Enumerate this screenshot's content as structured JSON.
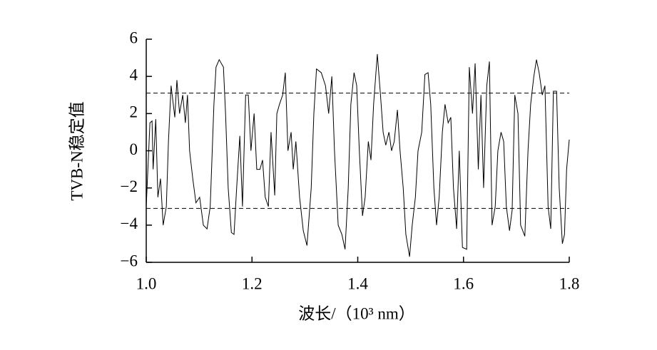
{
  "chart_data": {
    "type": "line",
    "xlabel": "波长/（10³ nm）",
    "ylabel": "TVB-N稳定值",
    "x": [
      1.0,
      1.007,
      1.011,
      1.013,
      1.018,
      1.022,
      1.027,
      1.032,
      1.038,
      1.042,
      1.047,
      1.054,
      1.058,
      1.063,
      1.069,
      1.074,
      1.078,
      1.082,
      1.088,
      1.094,
      1.101,
      1.108,
      1.115,
      1.121,
      1.128,
      1.132,
      1.138,
      1.146,
      1.15,
      1.155,
      1.161,
      1.166,
      1.171,
      1.177,
      1.182,
      1.188,
      1.193,
      1.198,
      1.204,
      1.209,
      1.215,
      1.22,
      1.225,
      1.231,
      1.236,
      1.243,
      1.247,
      1.252,
      1.258,
      1.263,
      1.268,
      1.274,
      1.278,
      1.283,
      1.29,
      1.297,
      1.304,
      1.312,
      1.317,
      1.322,
      1.331,
      1.339,
      1.345,
      1.351,
      1.356,
      1.363,
      1.37,
      1.376,
      1.382,
      1.387,
      1.393,
      1.398,
      1.403,
      1.409,
      1.414,
      1.42,
      1.425,
      1.43,
      1.437,
      1.443,
      1.448,
      1.453,
      1.459,
      1.464,
      1.469,
      1.475,
      1.48,
      1.486,
      1.491,
      1.498,
      1.503,
      1.509,
      1.514,
      1.521,
      1.527,
      1.533,
      1.538,
      1.544,
      1.549,
      1.554,
      1.56,
      1.565,
      1.571,
      1.576,
      1.581,
      1.587,
      1.592,
      1.598,
      1.606,
      1.611,
      1.617,
      1.622,
      1.628,
      1.633,
      1.638,
      1.644,
      1.649,
      1.654,
      1.66,
      1.665,
      1.671,
      1.676,
      1.681,
      1.687,
      1.692,
      1.697,
      1.703,
      1.708,
      1.716,
      1.722,
      1.727,
      1.733,
      1.738,
      1.743,
      1.749,
      1.754,
      1.76,
      1.765,
      1.77,
      1.776,
      1.781,
      1.787,
      1.791,
      1.795,
      1.8
    ],
    "series": [
      {
        "color": "#000000",
        "values": [
          -3,
          1.5,
          1.6,
          -1,
          1.7,
          -2.5,
          -1.5,
          -4,
          -3,
          0.5,
          3.5,
          1.8,
          3.8,
          2,
          3,
          1.5,
          3,
          0,
          -1.5,
          -2.8,
          -2.5,
          -4,
          -4.2,
          -3,
          2.5,
          4.5,
          4.9,
          4.5,
          2,
          -2,
          -4.4,
          -4.5,
          -2,
          0.8,
          -3,
          3,
          3,
          0,
          2,
          -1,
          -1,
          -0.5,
          -2.5,
          -3,
          1,
          -2.4,
          2,
          2.5,
          3,
          4.2,
          0,
          1,
          -1,
          0.5,
          -2.5,
          -4.3,
          -5.1,
          -2,
          2,
          4.4,
          4.2,
          3.5,
          2,
          4,
          0,
          -4,
          -4.5,
          -5.3,
          -2,
          2.5,
          4.2,
          3.5,
          0,
          -3.5,
          -2.5,
          0.5,
          -0.5,
          2.5,
          5.2,
          3,
          1,
          0.3,
          1,
          0,
          0.5,
          2.2,
          0,
          -2,
          -4.5,
          -5.7,
          -4,
          -2.5,
          0,
          1,
          4.1,
          4.2,
          2.5,
          -2,
          -4,
          -2.5,
          1,
          2.5,
          1.5,
          1.8,
          -2,
          -4.2,
          0,
          -5.2,
          -5.3,
          4.5,
          2,
          4.7,
          -1,
          3,
          -2,
          3.5,
          4.8,
          -4,
          -3,
          0,
          1,
          0.5,
          -3,
          -4.3,
          -3.2,
          3,
          2,
          -4,
          -4.6,
          0,
          2.5,
          4,
          4.9,
          4.2,
          3,
          3.5,
          -3,
          -4.2,
          3.2,
          3.2,
          -2,
          -5,
          -4.5,
          -1,
          0.6
        ]
      }
    ],
    "reference_lines": [
      3.1,
      -3.1
    ],
    "xlim": [
      1.0,
      1.8
    ],
    "xticks": [
      {
        "value": 1.0,
        "label": "1.0"
      },
      1.2,
      1.4,
      1.6,
      1.8
    ],
    "ylim": [
      -6,
      6
    ],
    "yticks": [
      {
        "value": -6,
        "label": "−6"
      },
      {
        "value": -4,
        "label": "−4"
      },
      {
        "value": -2,
        "label": "−2"
      },
      0,
      2,
      4,
      6
    ]
  }
}
